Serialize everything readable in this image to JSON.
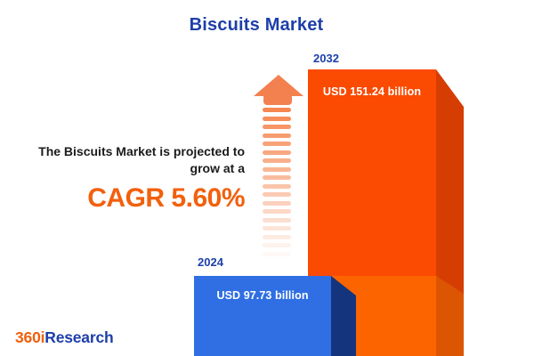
{
  "title": "Biscuits Market",
  "annotation": {
    "line1": "The Biscuits Market is projected to",
    "line2": "grow at a",
    "cagr": "CAGR 5.60%"
  },
  "bars": [
    {
      "year": "2024",
      "label": "USD 97.73 billion"
    },
    {
      "year": "2032",
      "label": "USD 151.24 billion"
    }
  ],
  "logo": {
    "prefix": "360i",
    "suffix": "Research"
  },
  "colors": {
    "title_blue": "#1E3FA9",
    "accent_orange": "#F2600D",
    "annotation_text": "#1B1B1B",
    "arrow_orange": "#F58149",
    "bar2032_front_top": "#FB4A01",
    "bar2032_front_bottom": "#FC6400",
    "bar2032_side_top": "#D63D03",
    "bar2032_side_bottom": "#DC5503",
    "bar2024_front": "#2F6FE3",
    "bar2024_side": "#14357E",
    "value_text": "#FFFFFF"
  },
  "chart_data": {
    "type": "bar",
    "title": "Biscuits Market",
    "categories": [
      "2024",
      "2032"
    ],
    "values": [
      97.73,
      151.24
    ],
    "value_unit": "USD billion",
    "value_labels": [
      "USD 97.73 billion",
      "USD 151.24 billion"
    ],
    "cagr_percent": 5.6,
    "annotation": "The Biscuits Market is projected to grow at a CAGR 5.60%",
    "axes": "none",
    "grid": false,
    "legend": "none",
    "bar_colors": {
      "2024": "#2F6FE3",
      "2032": "#FB4A01"
    }
  }
}
